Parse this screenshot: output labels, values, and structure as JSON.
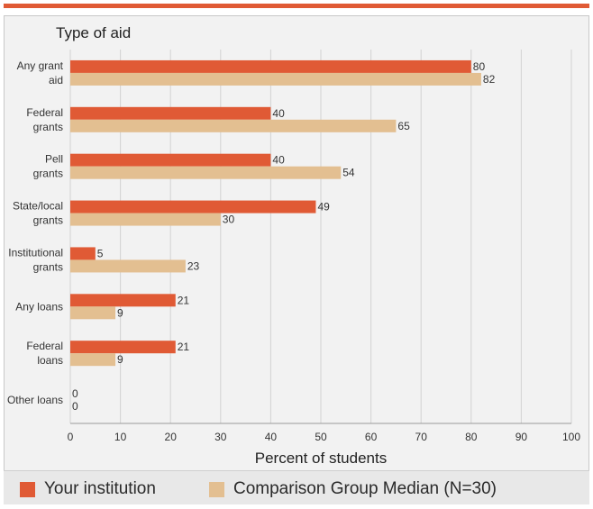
{
  "chart_data": {
    "type": "bar",
    "orientation": "horizontal",
    "title": "Type of aid",
    "xlabel": "Percent of students",
    "xlim": [
      0,
      100
    ],
    "xticks": [
      0,
      10,
      20,
      30,
      40,
      50,
      60,
      70,
      80,
      90,
      100
    ],
    "grid": true,
    "legend_position": "bottom",
    "categories": [
      [
        "Any grant",
        "aid"
      ],
      [
        "Federal",
        "grants"
      ],
      [
        "Pell",
        "grants"
      ],
      [
        "State/local",
        "grants"
      ],
      [
        "Institutional",
        "grants"
      ],
      [
        "Any loans"
      ],
      [
        "Federal",
        "loans"
      ],
      [
        "Other loans"
      ]
    ],
    "series": [
      {
        "name": "Your institution",
        "color": "#e05a35",
        "values": [
          80,
          40,
          40,
          49,
          5,
          21,
          21,
          0
        ]
      },
      {
        "name": "Comparison Group Median (N=30)",
        "color": "#e3bf91",
        "values": [
          82,
          65,
          54,
          30,
          23,
          9,
          9,
          0
        ]
      }
    ]
  }
}
